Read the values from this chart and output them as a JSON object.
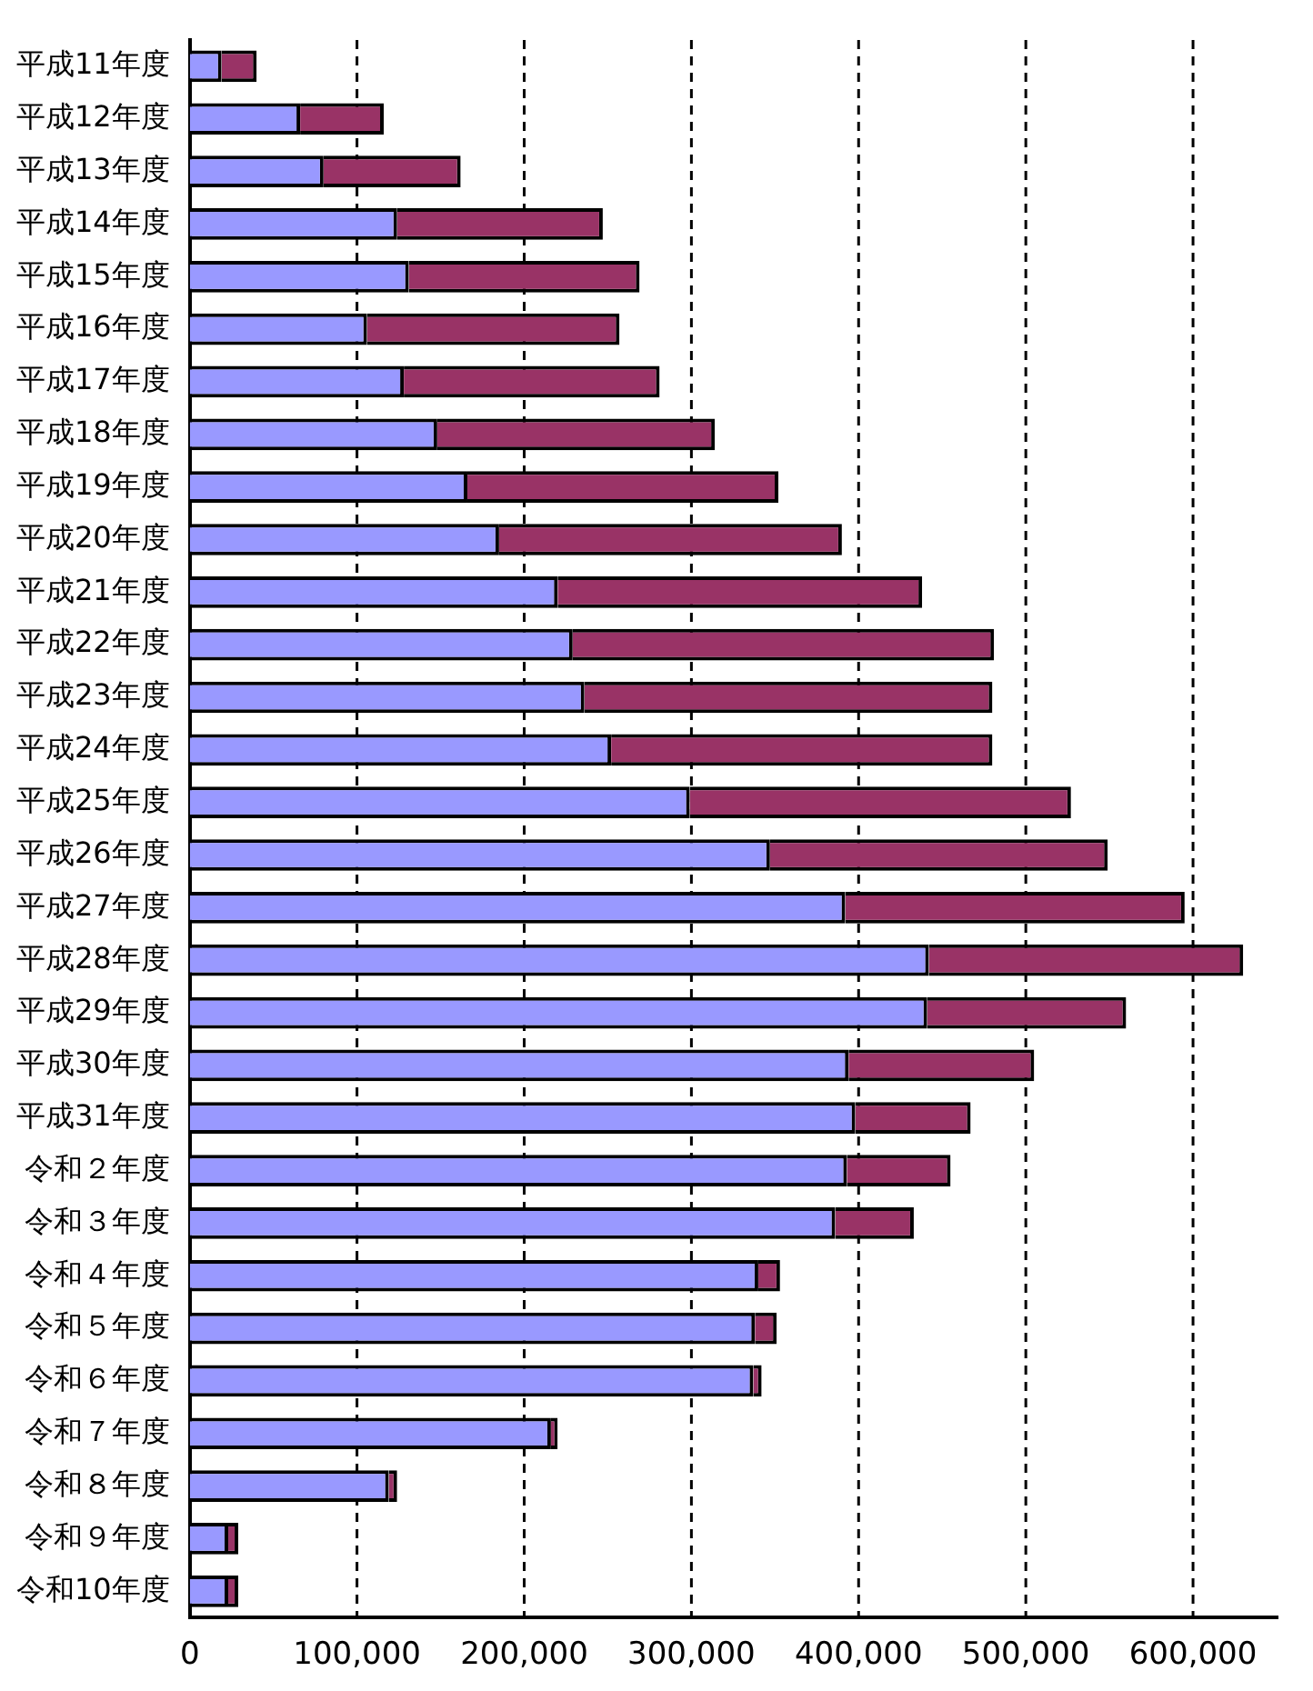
{
  "chart_data": {
    "type": "bar",
    "orientation": "horizontal",
    "stacked": true,
    "categories": [
      "平成11年度",
      "平成12年度",
      "平成13年度",
      "平成14年度",
      "平成15年度",
      "平成16年度",
      "平成17年度",
      "平成18年度",
      "平成19年度",
      "平成20年度",
      "平成21年度",
      "平成22年度",
      "平成23年度",
      "平成24年度",
      "平成25年度",
      "平成26年度",
      "平成27年度",
      "平成28年度",
      "平成29年度",
      "平成30年度",
      "平成31年度",
      "令和２年度",
      "令和３年度",
      "令和４年度",
      "令和５年度",
      "令和６年度",
      "令和７年度",
      "令和８年度",
      "令和９年度",
      "令和10年度"
    ],
    "series": [
      {
        "color": "#9999ff",
        "values": [
          19000,
          66000,
          80000,
          124000,
          131000,
          106000,
          128000,
          148000,
          166000,
          185000,
          220000,
          229000,
          236000,
          252000,
          299000,
          347000,
          392000,
          442000,
          441000,
          394000,
          398000,
          393000,
          386000,
          340000,
          338000,
          337000,
          216000,
          119000,
          23000,
          23000
        ]
      },
      {
        "color": "#993366",
        "values": [
          21000,
          50000,
          82000,
          123000,
          138000,
          151000,
          153000,
          166000,
          186000,
          205000,
          218000,
          252000,
          244000,
          228000,
          228000,
          202000,
          203000,
          188000,
          119000,
          111000,
          69000,
          62000,
          47000,
          13000,
          13000,
          5000,
          4000,
          5000,
          6000,
          6000
        ]
      }
    ],
    "xlim": [
      0,
      650000
    ],
    "xticks": [
      {
        "value": 0,
        "label": "0"
      },
      {
        "value": 100000,
        "label": "100,000"
      },
      {
        "value": 200000,
        "label": "200,000"
      },
      {
        "value": 300000,
        "label": "300,000"
      },
      {
        "value": 400000,
        "label": "400,000"
      },
      {
        "value": 500000,
        "label": "500,000"
      },
      {
        "value": 600000,
        "label": "600,000"
      }
    ],
    "grid": "x",
    "legend": false
  }
}
